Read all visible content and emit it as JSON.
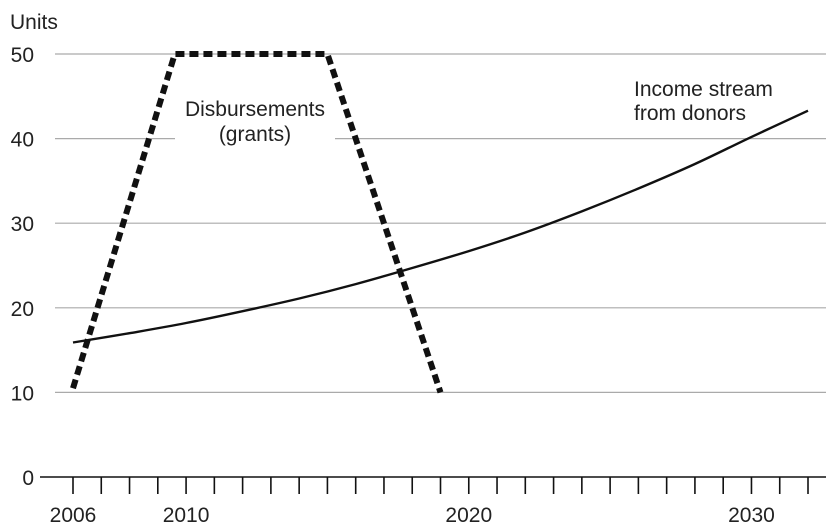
{
  "chart_data": {
    "type": "line",
    "ylabel": "Units",
    "ylim": [
      0,
      50
    ],
    "xlim": [
      2006,
      2032
    ],
    "y_ticks": [
      0,
      10,
      20,
      30,
      40,
      50
    ],
    "x_tick_labels": [
      2006,
      2010,
      2020,
      2030
    ],
    "grid": true,
    "series": [
      {
        "name": "Disbursements (grants)",
        "style": "dashed",
        "x": [
          2006,
          2009.6,
          2015,
          2019
        ],
        "y": [
          10.5,
          50,
          50,
          10
        ]
      },
      {
        "name": "Income stream from donors",
        "style": "solid",
        "x": [
          2006,
          2008,
          2010,
          2012,
          2014,
          2016,
          2018,
          2020,
          2022,
          2024,
          2026,
          2028,
          2030,
          2032
        ],
        "y": [
          15.9,
          17.0,
          18.2,
          19.6,
          21.1,
          22.8,
          24.7,
          26.7,
          28.9,
          31.4,
          34.1,
          37.0,
          40.2,
          43.3
        ]
      }
    ],
    "annotations": [
      {
        "lines": [
          "Disbursements",
          "(grants)"
        ],
        "series": "Disbursements (grants)"
      },
      {
        "lines": [
          "Income stream",
          "from donors"
        ],
        "series": "Income stream from donors"
      }
    ],
    "colors": {
      "line": "#111111",
      "grid": "#aaaaaa",
      "axis": "#111111",
      "text": "#222222"
    }
  }
}
